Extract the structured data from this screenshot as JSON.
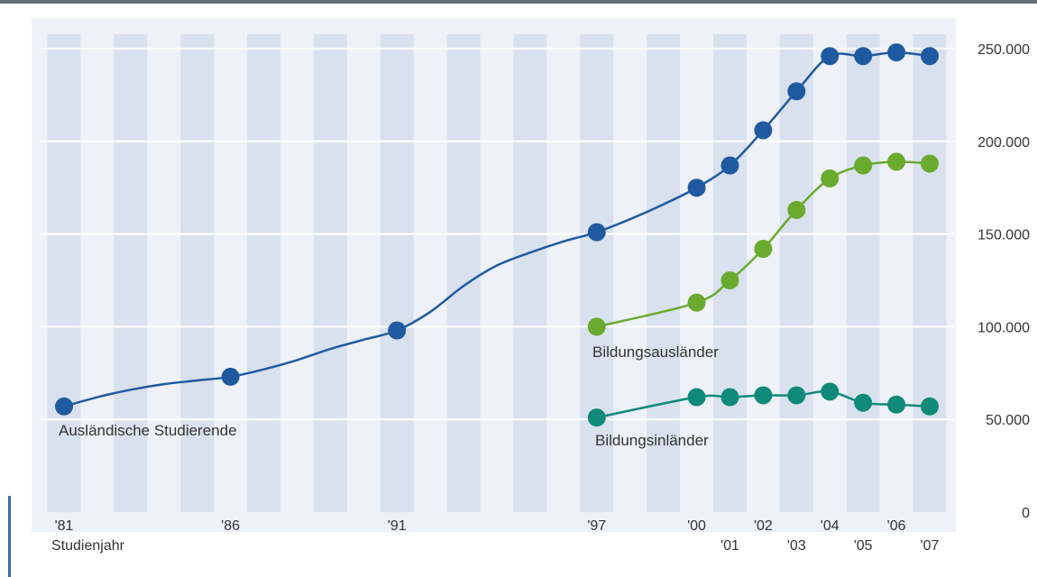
{
  "chart_data": {
    "type": "line",
    "title": "",
    "xlabel": "Studienjahr",
    "ylabel": "",
    "ylim": [
      0,
      250000
    ],
    "grid": true,
    "y_ticks": [
      {
        "value": 0,
        "label": "0"
      },
      {
        "value": 50000,
        "label": "50.000"
      },
      {
        "value": 100000,
        "label": "100.000"
      },
      {
        "value": 150000,
        "label": "150.000"
      },
      {
        "value": 200000,
        "label": "200.000"
      },
      {
        "value": 250000,
        "label": "250.000"
      }
    ],
    "x_ticks": [
      {
        "year": 1981,
        "label": "'81",
        "row": "top"
      },
      {
        "year": 1986,
        "label": "'86",
        "row": "top"
      },
      {
        "year": 1991,
        "label": "'91",
        "row": "top"
      },
      {
        "year": 1997,
        "label": "'97",
        "row": "top"
      },
      {
        "year": 2000,
        "label": "'00",
        "row": "top"
      },
      {
        "year": 2001,
        "label": "'01",
        "row": "bottom"
      },
      {
        "year": 2002,
        "label": "'02",
        "row": "top"
      },
      {
        "year": 2003,
        "label": "'03",
        "row": "bottom"
      },
      {
        "year": 2004,
        "label": "'04",
        "row": "top"
      },
      {
        "year": 2005,
        "label": "'05",
        "row": "bottom"
      },
      {
        "year": 2006,
        "label": "'06",
        "row": "top"
      },
      {
        "year": 2007,
        "label": "'07",
        "row": "bottom"
      }
    ],
    "series": [
      {
        "name": "Ausländische Studierende",
        "color": "#1f5aa0",
        "x": [
          1981,
          1982,
          1983,
          1984,
          1985,
          1986,
          1987,
          1988,
          1989,
          1990,
          1991,
          1992,
          1993,
          1994,
          1995,
          1996,
          1997,
          1998,
          1999,
          2000,
          2001,
          2002,
          2003,
          2004,
          2005,
          2006,
          2007
        ],
        "values": [
          57000,
          62000,
          66000,
          69000,
          71000,
          73000,
          77000,
          82000,
          88000,
          93000,
          98000,
          108000,
          122000,
          133000,
          140000,
          146000,
          151000,
          158000,
          166000,
          175000,
          187000,
          206000,
          227000,
          246000,
          246000,
          248000,
          246000
        ],
        "markers": [
          1981,
          1986,
          1991,
          1997,
          2000,
          2001,
          2002,
          2003,
          2004,
          2005,
          2006,
          2007
        ]
      },
      {
        "name": "Bildungsausländer",
        "color": "#6aaa2e",
        "x": [
          1997,
          2000,
          2001,
          2002,
          2003,
          2004,
          2005,
          2006,
          2007
        ],
        "values": [
          100000,
          113000,
          125000,
          142000,
          163000,
          180000,
          187000,
          189000,
          188000
        ],
        "markers": [
          1997,
          2000,
          2001,
          2002,
          2003,
          2004,
          2005,
          2006,
          2007
        ]
      },
      {
        "name": "Bildungsinländer",
        "color": "#0f8a7a",
        "x": [
          1997,
          2000,
          2001,
          2002,
          2003,
          2004,
          2005,
          2006,
          2007
        ],
        "values": [
          51000,
          62000,
          62000,
          63000,
          63000,
          65000,
          59000,
          58000,
          57000
        ],
        "markers": [
          1997,
          2000,
          2001,
          2002,
          2003,
          2004,
          2005,
          2006,
          2007
        ]
      }
    ]
  }
}
